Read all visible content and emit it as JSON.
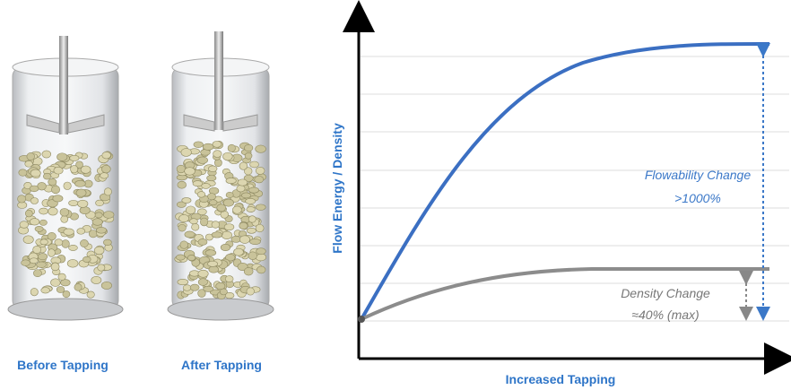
{
  "illustrations": [
    {
      "label": "Before Tapping"
    },
    {
      "label": "After Tapping"
    }
  ],
  "chart": {
    "y_axis_label": "Flow Energy / Density",
    "x_axis_label": "Increased Tapping",
    "annotations": [
      {
        "lines": [
          "Flowability Change",
          ">1000%"
        ]
      },
      {
        "lines": [
          "Density Change",
          "≈40% (max)"
        ]
      }
    ]
  }
}
